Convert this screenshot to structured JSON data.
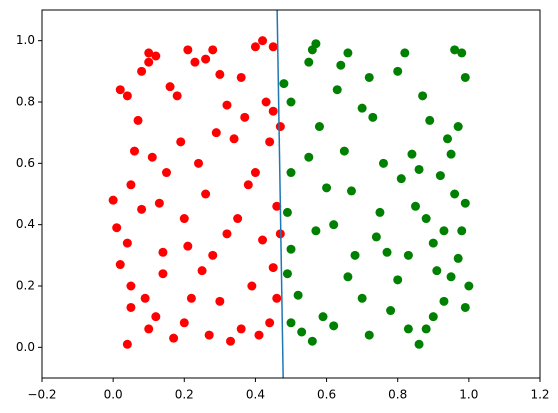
{
  "chart_data": {
    "type": "scatter",
    "xlim": [
      -0.2,
      1.2
    ],
    "ylim": [
      -0.1,
      1.1
    ],
    "xticks": [
      {
        "value": -0.2,
        "label": "−0.2"
      },
      {
        "value": 0,
        "label": "0.0"
      },
      {
        "value": 0.2,
        "label": "0.2"
      },
      {
        "value": 0.4,
        "label": "0.4"
      },
      {
        "value": 0.6,
        "label": "0.6"
      },
      {
        "value": 0.8,
        "label": "0.8"
      },
      {
        "value": 1,
        "label": "1.0"
      },
      {
        "value": 1.2,
        "label": "1.2"
      }
    ],
    "yticks": [
      {
        "value": 0,
        "label": "0.0"
      },
      {
        "value": 0.2,
        "label": "0.2"
      },
      {
        "value": 0.4,
        "label": "0.4"
      },
      {
        "value": 0.6,
        "label": "0.6"
      },
      {
        "value": 0.8,
        "label": "0.8"
      },
      {
        "value": 1,
        "label": "1.0"
      }
    ],
    "series": [
      {
        "color": "#ff0000",
        "x": [
          0.04,
          0.0,
          0.01,
          0.02,
          0.04,
          0.07,
          0.1,
          0.08,
          0.1,
          0.12,
          0.06,
          0.05,
          0.04,
          0.05,
          0.05,
          0.09,
          0.1,
          0.12,
          0.14,
          0.13,
          0.15,
          0.16,
          0.18,
          0.21,
          0.23,
          0.26,
          0.28,
          0.3,
          0.32,
          0.34,
          0.36,
          0.4,
          0.42,
          0.45,
          0.43,
          0.45,
          0.47,
          0.44,
          0.4,
          0.38,
          0.35,
          0.32,
          0.28,
          0.25,
          0.22,
          0.2,
          0.17,
          0.27,
          0.33,
          0.36,
          0.41,
          0.44,
          0.46,
          0.45,
          0.47,
          0.46,
          0.42,
          0.39,
          0.3,
          0.24,
          0.19,
          0.11,
          0.08,
          0.2,
          0.26,
          0.29,
          0.37,
          0.21,
          0.14,
          0.02
        ],
        "y": [
          0.01,
          0.48,
          0.39,
          0.84,
          0.82,
          0.74,
          0.96,
          0.9,
          0.93,
          0.95,
          0.64,
          0.53,
          0.34,
          0.2,
          0.13,
          0.16,
          0.06,
          0.1,
          0.24,
          0.47,
          0.57,
          0.85,
          0.82,
          0.97,
          0.93,
          0.94,
          0.97,
          0.89,
          0.79,
          0.68,
          0.88,
          0.98,
          1.0,
          0.98,
          0.8,
          0.77,
          0.72,
          0.67,
          0.57,
          0.53,
          0.42,
          0.37,
          0.3,
          0.25,
          0.16,
          0.08,
          0.03,
          0.04,
          0.02,
          0.06,
          0.04,
          0.08,
          0.16,
          0.26,
          0.37,
          0.46,
          0.35,
          0.2,
          0.15,
          0.6,
          0.67,
          0.62,
          0.45,
          0.42,
          0.5,
          0.7,
          0.75,
          0.33,
          0.31,
          0.27
        ]
      },
      {
        "color": "#008000",
        "x": [
          0.48,
          0.5,
          0.5,
          0.49,
          0.5,
          0.49,
          0.52,
          0.5,
          0.53,
          0.55,
          0.57,
          0.56,
          0.58,
          0.55,
          0.6,
          0.57,
          0.59,
          0.56,
          0.62,
          0.63,
          0.64,
          0.66,
          0.65,
          0.67,
          0.68,
          0.7,
          0.72,
          0.73,
          0.7,
          0.75,
          0.77,
          0.76,
          0.8,
          0.82,
          0.84,
          0.86,
          0.87,
          0.89,
          0.85,
          0.83,
          0.8,
          0.78,
          0.83,
          0.86,
          0.88,
          0.9,
          0.93,
          0.95,
          0.97,
          0.99,
          1.0,
          0.98,
          0.99,
          0.96,
          0.95,
          0.97,
          0.99,
          0.98,
          0.96,
          0.93,
          0.9,
          0.91,
          0.92,
          0.94,
          0.62,
          0.66,
          0.72,
          0.74,
          0.81,
          0.88
        ],
        "y": [
          0.86,
          0.8,
          0.57,
          0.44,
          0.32,
          0.24,
          0.17,
          0.08,
          0.05,
          0.93,
          0.99,
          0.97,
          0.72,
          0.62,
          0.52,
          0.38,
          0.1,
          0.02,
          0.07,
          0.84,
          0.92,
          0.96,
          0.64,
          0.51,
          0.3,
          0.16,
          0.88,
          0.75,
          0.78,
          0.44,
          0.31,
          0.6,
          0.9,
          0.96,
          0.63,
          0.58,
          0.82,
          0.74,
          0.46,
          0.3,
          0.22,
          0.12,
          0.06,
          0.01,
          0.06,
          0.1,
          0.15,
          0.23,
          0.29,
          0.13,
          0.2,
          0.38,
          0.47,
          0.5,
          0.63,
          0.72,
          0.88,
          0.96,
          0.97,
          0.38,
          0.34,
          0.25,
          0.56,
          0.68,
          0.4,
          0.23,
          0.04,
          0.36,
          0.55,
          0.42
        ]
      }
    ],
    "line": {
      "color": "#1f77b4",
      "x": [
        0.461,
        0.478
      ],
      "y": [
        1.1,
        -0.1
      ]
    }
  }
}
